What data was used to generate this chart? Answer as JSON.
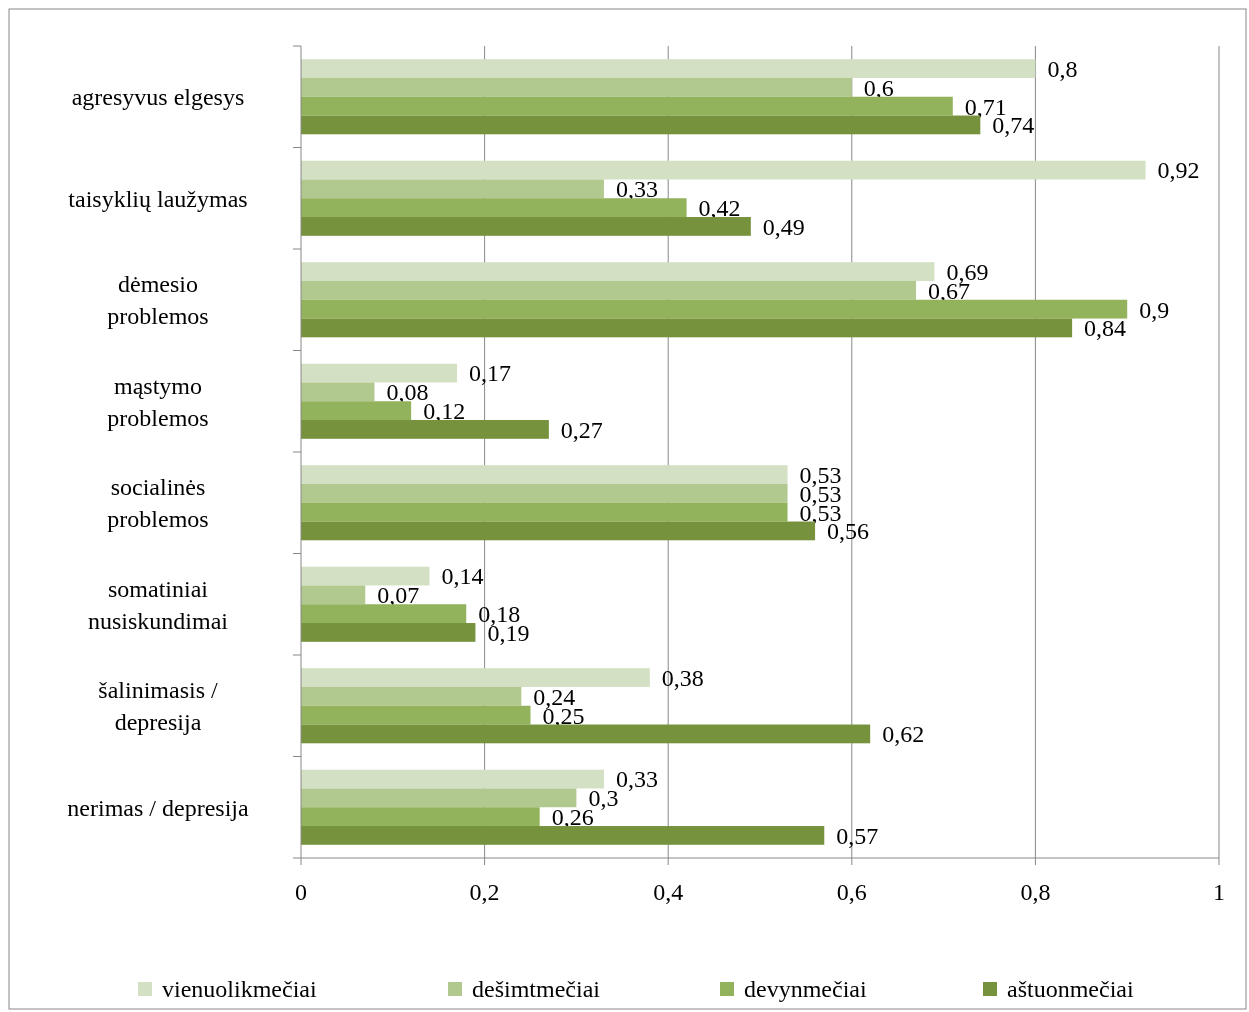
{
  "chart_data": {
    "type": "bar",
    "orientation": "horizontal",
    "categories": [
      "agresyvus elgesys",
      "taisyklių laužymas",
      "dėmesio\nproblemos",
      "mąstymo\nproblemos",
      "socialinės\nproblemos",
      "somatiniai\nnusiskundimai",
      "šalinimasis /\ndepresija",
      "nerimas / depresija"
    ],
    "series": [
      {
        "name": "vienuolikmečiai",
        "color": "#d3e0c3",
        "values": [
          0.8,
          0.92,
          0.69,
          0.17,
          0.53,
          0.14,
          0.38,
          0.33
        ],
        "value_labels": [
          "0,8",
          "0,92",
          "0,69",
          "0,17",
          "0,53",
          "0,14",
          "0,38",
          "0,33"
        ]
      },
      {
        "name": "dešimtmečiai",
        "color": "#b1c98f",
        "values": [
          0.6,
          0.33,
          0.67,
          0.08,
          0.53,
          0.07,
          0.24,
          0.3
        ],
        "value_labels": [
          "0,6",
          "0,33",
          "0,67",
          "0,08",
          "0,53",
          "0,07",
          "0,24",
          "0,3"
        ]
      },
      {
        "name": "devynmečiai",
        "color": "#92b35c",
        "values": [
          0.71,
          0.42,
          0.9,
          0.12,
          0.53,
          0.18,
          0.25,
          0.26
        ],
        "value_labels": [
          "0,71",
          "0,42",
          "0,9",
          "0,12",
          "0,53",
          "0,18",
          "0,25",
          "0,26"
        ]
      },
      {
        "name": "aštuonmečiai",
        "color": "#76923c",
        "values": [
          0.74,
          0.49,
          0.84,
          0.27,
          0.56,
          0.19,
          0.62,
          0.57
        ],
        "value_labels": [
          "0,74",
          "0,49",
          "0,84",
          "0,27",
          "0,56",
          "0,19",
          "0,62",
          "0,57"
        ]
      }
    ],
    "xlim": [
      0,
      1
    ],
    "xticks": [
      0,
      {
        "value": 0.2,
        "label": "0,2"
      },
      {
        "value": 0.4,
        "label": "0,4"
      },
      {
        "value": 0.6,
        "label": "0,6"
      },
      {
        "value": 0.8,
        "label": "0,8"
      },
      1
    ],
    "grid": "x",
    "legend": "bottom"
  }
}
